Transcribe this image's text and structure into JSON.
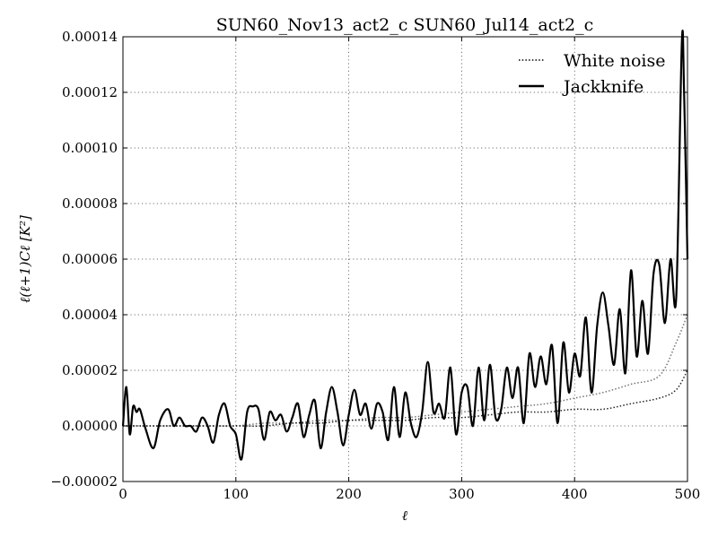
{
  "chart_data": {
    "type": "line",
    "title": "SUN60_Nov13_act2_c SUN60_Jul14_act2_c",
    "xlabel": "ℓ",
    "ylabel": "ℓ(ℓ+1)Cℓ [K²]",
    "xlim": [
      0,
      500
    ],
    "ylim": [
      -2e-05,
      0.00014
    ],
    "x_ticks": [
      0,
      100,
      200,
      300,
      400,
      500
    ],
    "x_tick_labels": [
      "0",
      "100",
      "200",
      "300",
      "400",
      "500"
    ],
    "y_ticks": [
      -2e-05,
      0,
      2e-05,
      4e-05,
      6e-05,
      8e-05,
      0.0001,
      0.00012,
      0.00014
    ],
    "y_tick_labels": [
      "−0.00002",
      "0.00000",
      "0.00002",
      "0.00004",
      "0.00006",
      "0.00008",
      "0.00010",
      "0.00012",
      "0.00014"
    ],
    "grid": true,
    "legend_position": "top-right",
    "series": [
      {
        "name": "White noise",
        "style": "dotted",
        "color": "#000000",
        "x": [
          0,
          25,
          50,
          75,
          100,
          125,
          150,
          175,
          200,
          225,
          250,
          275,
          300,
          325,
          350,
          375,
          400,
          425,
          450,
          475,
          490,
          500
        ],
        "y_low": [
          0.0,
          0.0,
          0.0,
          0.0,
          0.0,
          0.0,
          1e-06,
          1e-06,
          2e-06,
          2e-06,
          2e-06,
          3e-06,
          3e-06,
          4e-06,
          5e-06,
          5e-06,
          6e-06,
          6e-06,
          8e-06,
          1e-05,
          1.3e-05,
          2e-05
        ],
        "y_high": [
          0.0,
          0.0,
          0.0,
          0.0,
          0.0,
          1e-06,
          1e-06,
          2e-06,
          2e-06,
          3e-06,
          3e-06,
          4e-06,
          5e-06,
          6e-06,
          7e-06,
          8e-06,
          1e-05,
          1.2e-05,
          1.5e-05,
          1.8e-05,
          3e-05,
          4e-05
        ]
      },
      {
        "name": "Jackknife",
        "style": "solid",
        "color": "#000000",
        "x": [
          0,
          3,
          6,
          9,
          12,
          15,
          20,
          27,
          33,
          40,
          45,
          50,
          55,
          60,
          65,
          70,
          75,
          80,
          85,
          90,
          95,
          100,
          105,
          110,
          115,
          120,
          125,
          130,
          135,
          140,
          145,
          150,
          155,
          160,
          165,
          170,
          175,
          180,
          185,
          190,
          195,
          200,
          205,
          210,
          215,
          220,
          225,
          230,
          235,
          240,
          245,
          250,
          255,
          260,
          265,
          270,
          275,
          280,
          285,
          290,
          295,
          300,
          305,
          310,
          315,
          320,
          325,
          330,
          335,
          340,
          345,
          350,
          355,
          360,
          365,
          370,
          375,
          380,
          385,
          390,
          395,
          400,
          405,
          410,
          415,
          420,
          425,
          430,
          435,
          440,
          445,
          450,
          455,
          460,
          465,
          470,
          475,
          480,
          485,
          490,
          495,
          497,
          500
        ],
        "y": [
          0.0,
          1.4e-05,
          -3e-06,
          7e-06,
          5e-06,
          6e-06,
          -1e-06,
          -8e-06,
          2e-06,
          6e-06,
          0.0,
          3e-06,
          0.0,
          0.0,
          -2e-06,
          3e-06,
          0.0,
          -6e-06,
          4e-06,
          8e-06,
          0.0,
          -3e-06,
          -1.2e-05,
          5e-06,
          7e-06,
          6e-06,
          -5e-06,
          5e-06,
          2e-06,
          4e-06,
          -2e-06,
          3e-06,
          8e-06,
          -4e-06,
          4e-06,
          9e-06,
          -8e-06,
          5e-06,
          1.4e-05,
          5e-06,
          -7e-06,
          4e-06,
          1.3e-05,
          4e-06,
          8e-06,
          -1e-06,
          8e-06,
          5e-06,
          -5e-06,
          1.4e-05,
          -4e-06,
          1.2e-05,
          1e-06,
          -4e-06,
          5e-06,
          2.3e-05,
          5e-06,
          8e-06,
          3e-06,
          2.1e-05,
          -3e-06,
          1.2e-05,
          1.4e-05,
          0.0,
          2.1e-05,
          2e-06,
          2.2e-05,
          3e-06,
          6e-06,
          2.1e-05,
          1e-05,
          2.1e-05,
          1e-06,
          2.6e-05,
          1.4e-05,
          2.5e-05,
          1.5e-05,
          2.9e-05,
          1e-06,
          3e-05,
          1.2e-05,
          2.6e-05,
          1.8e-05,
          3.9e-05,
          1.2e-05,
          3.6e-05,
          4.8e-05,
          3.6e-05,
          2.2e-05,
          4.2e-05,
          1.9e-05,
          5.6e-05,
          2.5e-05,
          4.5e-05,
          2.6e-05,
          5.5e-05,
          5.8e-05,
          3.7e-05,
          6e-05,
          4.6e-05,
          0.000138,
          0.00012,
          6e-05
        ]
      }
    ]
  }
}
